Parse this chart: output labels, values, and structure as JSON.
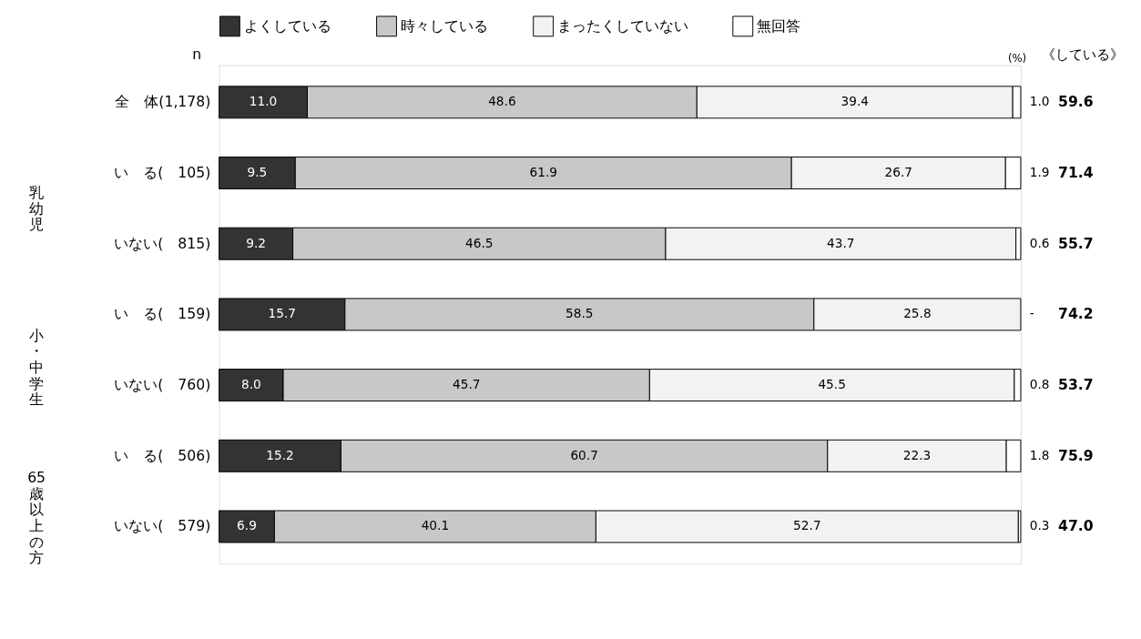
{
  "chart_data": {
    "type": "bar",
    "orientation": "horizontal",
    "stacked": true,
    "categories": [
      "全　体(1,178)",
      "い　る(　105)",
      "いない(　815)",
      "い　る(　159)",
      "いない(　760)",
      "い　る(　506)",
      "いない(　579)"
    ],
    "series": [
      {
        "name": "よくしている",
        "color": "#333333",
        "values": [
          11.0,
          9.5,
          9.2,
          15.7,
          8.0,
          15.2,
          6.9
        ],
        "value_labels": [
          "11.0",
          "9.5",
          "9.2",
          "15.7",
          "8.0",
          "15.2",
          "6.9"
        ]
      },
      {
        "name": "時々している",
        "color": "#c8c8c8",
        "values": [
          48.6,
          61.9,
          46.5,
          58.5,
          45.7,
          60.7,
          40.1
        ],
        "value_labels": [
          "48.6",
          "61.9",
          "46.5",
          "58.5",
          "45.7",
          "60.7",
          "40.1"
        ]
      },
      {
        "name": "まったくしていない",
        "color": "#f2f2f2",
        "values": [
          39.4,
          26.7,
          43.7,
          25.8,
          45.5,
          22.3,
          52.7
        ],
        "value_labels": [
          "39.4",
          "26.7",
          "43.7",
          "25.8",
          "45.5",
          "22.3",
          "52.7"
        ]
      },
      {
        "name": "無回答",
        "color": "#ffffff",
        "values": [
          1.0,
          1.9,
          0.6,
          0,
          0.8,
          1.8,
          0.3
        ],
        "value_labels": [
          "1.0",
          "1.9",
          "0.6",
          "-",
          "0.8",
          "1.8",
          "0.3"
        ]
      }
    ],
    "xlim": [
      0,
      100
    ],
    "tick_labels": "y",
    "legend": "top",
    "annotations": [
      "n",
      "(%)",
      "《している》",
      "乳幼児",
      "小・中学生",
      "65歳以上の方",
      "59.6",
      "71.4",
      "55.7",
      "74.2",
      "53.7",
      "75.9",
      "47.0"
    ]
  }
}
